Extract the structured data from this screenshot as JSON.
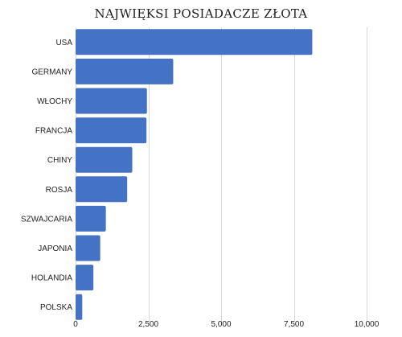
{
  "chart_data": {
    "type": "bar",
    "orientation": "horizontal",
    "title": "NAJWIĘKSI POSIADACZE ZŁOTA",
    "xlabel": "",
    "ylabel": "",
    "categories": [
      "USA",
      "GERMANY",
      "WŁOCHY",
      "FRANCJA",
      "CHINY",
      "ROSJA",
      "SZWAJCARIA",
      "JAPONIA",
      "HOLANDIA",
      "POLSKA"
    ],
    "values": [
      8133,
      3355,
      2452,
      2436,
      1948,
      1773,
      1040,
      846,
      612,
      229
    ],
    "xlim": [
      0,
      10000
    ],
    "xticks": [
      0,
      2500,
      5000,
      7500,
      10000
    ],
    "xtick_labels": [
      "0",
      "2,500",
      "5,000",
      "7,500",
      "10,000"
    ],
    "grid": "vertical",
    "legend": "none",
    "bar_color": "#4472c4"
  }
}
